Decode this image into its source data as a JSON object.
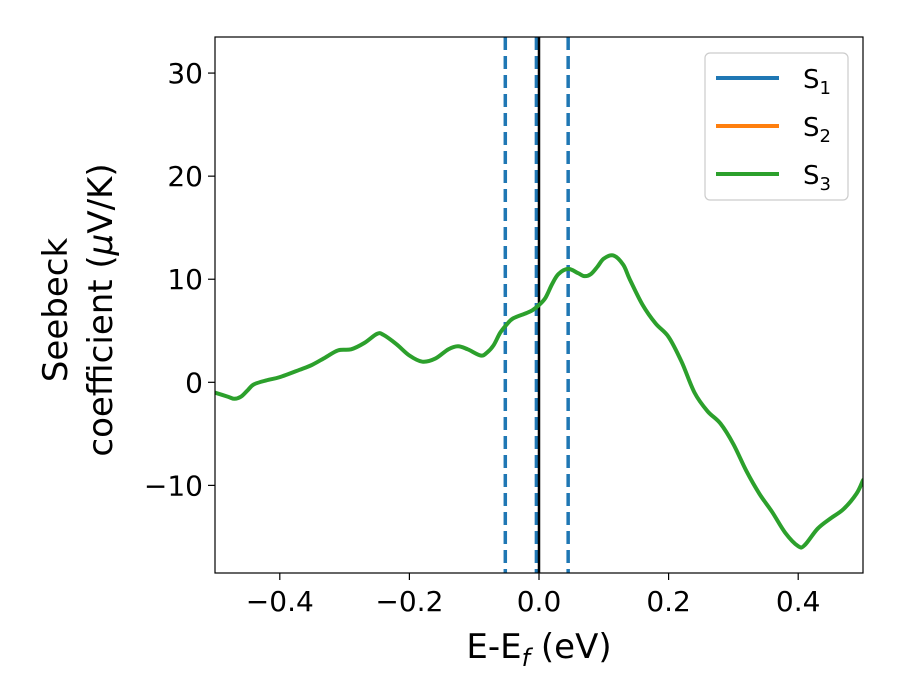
{
  "chart_data": {
    "type": "line",
    "title": "",
    "xlabel": {
      "main": "E-E",
      "sub": "f",
      "tail": " (eV)"
    },
    "ylabel": {
      "line1": "Seebeck",
      "line2_pre": "coefficient  (",
      "mu": "μ",
      "line2_post": "V/K)"
    },
    "xlim": [
      -0.5,
      0.5
    ],
    "ylim": [
      -18.5,
      33.5
    ],
    "xticks": [
      -0.4,
      -0.2,
      0.0,
      0.2,
      0.4
    ],
    "xtick_labels": [
      "−0.4",
      "−0.2",
      "0.0",
      "0.2",
      "0.4"
    ],
    "yticks": [
      -10,
      0,
      10,
      20,
      30
    ],
    "ytick_labels": [
      "−10",
      "0",
      "10",
      "20",
      "30"
    ],
    "grid": false,
    "legend_position": "top-right",
    "series": [
      {
        "name": {
          "base": "S",
          "sub": "1"
        },
        "color": "#1f77b4",
        "points": []
      },
      {
        "name": {
          "base": "S",
          "sub": "2"
        },
        "color": "#ff7f0e",
        "points": []
      },
      {
        "name": {
          "base": "S",
          "sub": "3"
        },
        "color": "#2ca02c",
        "points": [
          [
            -0.5,
            -1.0
          ],
          [
            -0.48,
            -1.4
          ],
          [
            -0.47,
            -1.6
          ],
          [
            -0.46,
            -1.4
          ],
          [
            -0.45,
            -0.8
          ],
          [
            -0.44,
            -0.2
          ],
          [
            -0.42,
            0.2
          ],
          [
            -0.4,
            0.5
          ],
          [
            -0.37,
            1.2
          ],
          [
            -0.35,
            1.7
          ],
          [
            -0.33,
            2.4
          ],
          [
            -0.31,
            3.1
          ],
          [
            -0.29,
            3.2
          ],
          [
            -0.27,
            3.8
          ],
          [
            -0.25,
            4.7
          ],
          [
            -0.24,
            4.6
          ],
          [
            -0.22,
            3.7
          ],
          [
            -0.2,
            2.6
          ],
          [
            -0.18,
            2.0
          ],
          [
            -0.16,
            2.3
          ],
          [
            -0.14,
            3.2
          ],
          [
            -0.125,
            3.5
          ],
          [
            -0.11,
            3.2
          ],
          [
            -0.09,
            2.6
          ],
          [
            -0.08,
            2.9
          ],
          [
            -0.07,
            3.6
          ],
          [
            -0.06,
            4.8
          ],
          [
            -0.05,
            5.6
          ],
          [
            -0.04,
            6.2
          ],
          [
            -0.02,
            6.7
          ],
          [
            -0.01,
            7.0
          ],
          [
            0.0,
            7.5
          ],
          [
            0.01,
            8.2
          ],
          [
            0.02,
            9.5
          ],
          [
            0.03,
            10.5
          ],
          [
            0.045,
            11.0
          ],
          [
            0.06,
            10.6
          ],
          [
            0.07,
            10.3
          ],
          [
            0.08,
            10.5
          ],
          [
            0.09,
            11.2
          ],
          [
            0.1,
            12.0
          ],
          [
            0.115,
            12.3
          ],
          [
            0.13,
            11.4
          ],
          [
            0.14,
            10.0
          ],
          [
            0.16,
            7.5
          ],
          [
            0.18,
            5.7
          ],
          [
            0.2,
            4.4
          ],
          [
            0.22,
            2.0
          ],
          [
            0.24,
            -1.0
          ],
          [
            0.26,
            -2.8
          ],
          [
            0.28,
            -4.0
          ],
          [
            0.3,
            -6.0
          ],
          [
            0.32,
            -8.6
          ],
          [
            0.34,
            -10.8
          ],
          [
            0.36,
            -12.6
          ],
          [
            0.38,
            -14.6
          ],
          [
            0.4,
            -15.9
          ],
          [
            0.41,
            -15.8
          ],
          [
            0.43,
            -14.2
          ],
          [
            0.45,
            -13.2
          ],
          [
            0.47,
            -12.3
          ],
          [
            0.49,
            -10.8
          ],
          [
            0.5,
            -9.5
          ]
        ]
      }
    ],
    "vlines": [
      {
        "x": -0.052,
        "style": "dashed",
        "color": "#1f77b4"
      },
      {
        "x": -0.004,
        "style": "dashed",
        "color": "#1f77b4"
      },
      {
        "x": 0.0,
        "style": "solid",
        "color": "#000000"
      },
      {
        "x": 0.045,
        "style": "dashed",
        "color": "#1f77b4"
      }
    ]
  }
}
